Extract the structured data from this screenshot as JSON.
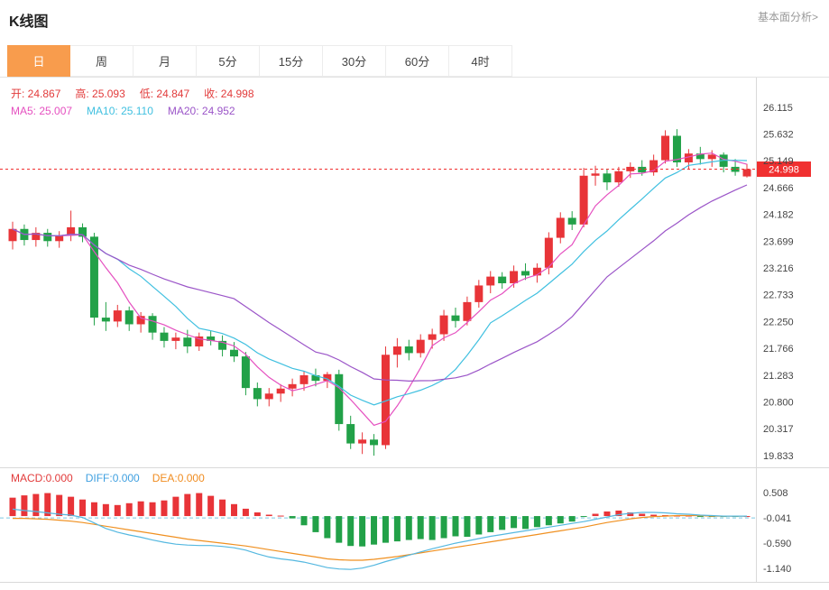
{
  "header": {
    "title": "K线图",
    "link": "基本面分析>"
  },
  "tabs": {
    "active_index": 0,
    "items": [
      {
        "label": "日"
      },
      {
        "label": "周"
      },
      {
        "label": "月"
      },
      {
        "label": "5分"
      },
      {
        "label": "15分"
      },
      {
        "label": "30分"
      },
      {
        "label": "60分"
      },
      {
        "label": "4时"
      }
    ]
  },
  "info": {
    "open": "开: 24.867",
    "high": "高: 25.093",
    "low": "低: 24.847",
    "close": "收: 24.998"
  },
  "ma": {
    "ma5": "MA5: 25.007",
    "ma10": "MA10: 25.110",
    "ma20": "MA20: 24.952"
  },
  "macd_labels": {
    "macd": "MACD:0.000",
    "diff": "DIFF:0.000",
    "dea": "DEA:0.000"
  },
  "price_badge": "24.998",
  "colors": {
    "up": "#e83438",
    "down": "#22a148",
    "ma5": "#e550c0",
    "ma10": "#40c0e0",
    "ma20": "#9b55c8",
    "diff": "#55b8e0",
    "dea": "#f09020",
    "axis_text": "#444444",
    "grid": "#d9d9d9",
    "dashed": "#7ec8e3",
    "price_line": "#f03030",
    "badge_bg": "#f03030"
  },
  "chart_data": {
    "type": "candlestick+macd",
    "title": "K线图",
    "period_selected": "日",
    "y_ticks": [
      "26.115",
      "25.632",
      "25.149",
      "24.666",
      "24.182",
      "23.699",
      "23.216",
      "22.733",
      "22.250",
      "21.766",
      "21.283",
      "20.800",
      "20.317",
      "19.833"
    ],
    "y_range": [
      19.62,
      26.65
    ],
    "macd_ticks": [
      "0.508",
      "-0.041",
      "-0.590",
      "-1.140"
    ],
    "macd_range": [
      -1.45,
      1.06
    ],
    "zero_line": -0.041,
    "last_close": 24.998,
    "ma_periods": [
      5,
      10,
      20
    ],
    "ohlc_last": {
      "open": 24.867,
      "high": 25.093,
      "low": 24.847,
      "close": 24.998
    },
    "ma_values": {
      "ma5": 25.007,
      "ma10": 25.11,
      "ma20": 24.952
    },
    "macd_values": {
      "macd": 0.0,
      "diff": 0.0,
      "dea": 0.0
    },
    "candles": [
      [
        23.7,
        24.05,
        23.55,
        23.92
      ],
      [
        23.92,
        24.0,
        23.62,
        23.72
      ],
      [
        23.72,
        23.95,
        23.6,
        23.85
      ],
      [
        23.85,
        23.92,
        23.6,
        23.7
      ],
      [
        23.7,
        23.88,
        23.58,
        23.8
      ],
      [
        23.8,
        24.25,
        23.7,
        23.95
      ],
      [
        23.95,
        24.02,
        23.68,
        23.78
      ],
      [
        23.78,
        23.85,
        22.18,
        22.32
      ],
      [
        22.32,
        22.6,
        22.08,
        22.25
      ],
      [
        22.25,
        22.55,
        22.15,
        22.45
      ],
      [
        22.45,
        22.52,
        22.08,
        22.2
      ],
      [
        22.2,
        22.42,
        22.05,
        22.35
      ],
      [
        22.35,
        22.4,
        21.92,
        22.05
      ],
      [
        22.05,
        22.15,
        21.78,
        21.9
      ],
      [
        21.9,
        22.05,
        21.75,
        21.96
      ],
      [
        21.96,
        22.1,
        21.68,
        21.8
      ],
      [
        21.8,
        22.05,
        21.72,
        21.98
      ],
      [
        21.98,
        22.08,
        21.82,
        21.9
      ],
      [
        21.9,
        22.0,
        21.62,
        21.74
      ],
      [
        21.74,
        21.88,
        21.52,
        21.62
      ],
      [
        21.62,
        21.7,
        20.92,
        21.05
      ],
      [
        21.05,
        21.15,
        20.72,
        20.85
      ],
      [
        20.85,
        21.05,
        20.72,
        20.95
      ],
      [
        20.95,
        21.12,
        20.8,
        21.04
      ],
      [
        21.04,
        21.22,
        20.9,
        21.12
      ],
      [
        21.12,
        21.35,
        21.0,
        21.28
      ],
      [
        21.28,
        21.4,
        21.08,
        21.18
      ],
      [
        21.18,
        21.34,
        21.05,
        21.3
      ],
      [
        21.3,
        21.38,
        20.28,
        20.4
      ],
      [
        20.4,
        20.55,
        19.95,
        20.05
      ],
      [
        20.05,
        20.25,
        19.86,
        20.12
      ],
      [
        20.12,
        20.22,
        19.83,
        20.02
      ],
      [
        20.02,
        21.8,
        19.95,
        21.65
      ],
      [
        21.65,
        21.95,
        21.42,
        21.8
      ],
      [
        21.8,
        21.92,
        21.55,
        21.68
      ],
      [
        21.68,
        22.02,
        21.6,
        21.92
      ],
      [
        21.92,
        22.12,
        21.76,
        22.02
      ],
      [
        22.02,
        22.46,
        21.9,
        22.36
      ],
      [
        22.36,
        22.5,
        22.14,
        22.26
      ],
      [
        22.26,
        22.7,
        22.18,
        22.6
      ],
      [
        22.6,
        23.0,
        22.5,
        22.9
      ],
      [
        22.9,
        23.16,
        22.76,
        23.06
      ],
      [
        23.06,
        23.14,
        22.84,
        22.94
      ],
      [
        22.94,
        23.26,
        22.86,
        23.16
      ],
      [
        23.16,
        23.3,
        23.0,
        23.08
      ],
      [
        23.08,
        23.3,
        22.95,
        23.22
      ],
      [
        23.22,
        23.86,
        23.1,
        23.76
      ],
      [
        23.76,
        24.22,
        23.66,
        24.12
      ],
      [
        24.12,
        24.24,
        23.9,
        24.0
      ],
      [
        24.0,
        25.02,
        23.95,
        24.88
      ],
      [
        24.88,
        25.06,
        24.7,
        24.92
      ],
      [
        24.92,
        25.0,
        24.62,
        24.76
      ],
      [
        24.76,
        25.04,
        24.68,
        24.96
      ],
      [
        24.96,
        25.12,
        24.84,
        25.04
      ],
      [
        25.04,
        25.16,
        24.88,
        24.94
      ],
      [
        24.94,
        25.26,
        24.88,
        25.16
      ],
      [
        25.16,
        25.7,
        25.1,
        25.6
      ],
      [
        25.6,
        25.72,
        25.04,
        25.12
      ],
      [
        25.12,
        25.36,
        25.0,
        25.28
      ],
      [
        25.28,
        25.4,
        25.08,
        25.18
      ],
      [
        25.18,
        25.34,
        25.04,
        25.26
      ],
      [
        25.26,
        25.3,
        24.94,
        25.04
      ],
      [
        25.04,
        25.18,
        24.88,
        24.95
      ],
      [
        24.867,
        25.093,
        24.847,
        24.998
      ]
    ],
    "macd_hist": [
      0.4,
      0.45,
      0.48,
      0.5,
      0.46,
      0.42,
      0.36,
      0.3,
      0.26,
      0.24,
      0.28,
      0.32,
      0.3,
      0.34,
      0.42,
      0.48,
      0.5,
      0.44,
      0.36,
      0.26,
      0.16,
      0.08,
      0.03,
      0.01,
      -0.05,
      -0.2,
      -0.35,
      -0.48,
      -0.58,
      -0.65,
      -0.66,
      -0.62,
      -0.58,
      -0.55,
      -0.52,
      -0.5,
      -0.52,
      -0.48,
      -0.44,
      -0.45,
      -0.4,
      -0.35,
      -0.3,
      -0.26,
      -0.28,
      -0.24,
      -0.2,
      -0.16,
      -0.12,
      -0.02,
      0.05,
      0.1,
      0.12,
      0.08,
      0.05,
      0.03,
      0.02,
      0.01,
      0.01,
      -0.01,
      -0.01,
      -0.02,
      -0.01,
      0.0
    ],
    "diff": [
      0.15,
      0.12,
      0.1,
      0.07,
      0.04,
      0.02,
      -0.03,
      -0.15,
      -0.27,
      -0.35,
      -0.41,
      -0.46,
      -0.52,
      -0.57,
      -0.61,
      -0.63,
      -0.64,
      -0.64,
      -0.66,
      -0.69,
      -0.74,
      -0.82,
      -0.89,
      -0.93,
      -0.96,
      -1.0,
      -1.06,
      -1.12,
      -1.15,
      -1.16,
      -1.13,
      -1.07,
      -0.99,
      -0.92,
      -0.85,
      -0.78,
      -0.71,
      -0.65,
      -0.59,
      -0.54,
      -0.49,
      -0.44,
      -0.4,
      -0.36,
      -0.32,
      -0.28,
      -0.24,
      -0.2,
      -0.16,
      -0.12,
      -0.07,
      -0.02,
      0.03,
      0.06,
      0.08,
      0.08,
      0.07,
      0.05,
      0.04,
      0.02,
      0.01,
      0.0,
      0.0,
      0.0
    ],
    "dea": [
      -0.05,
      -0.05,
      -0.06,
      -0.07,
      -0.09,
      -0.11,
      -0.14,
      -0.18,
      -0.22,
      -0.26,
      -0.3,
      -0.34,
      -0.38,
      -0.42,
      -0.46,
      -0.5,
      -0.53,
      -0.56,
      -0.59,
      -0.62,
      -0.65,
      -0.69,
      -0.73,
      -0.77,
      -0.81,
      -0.85,
      -0.89,
      -0.93,
      -0.95,
      -0.96,
      -0.96,
      -0.94,
      -0.91,
      -0.88,
      -0.84,
      -0.8,
      -0.76,
      -0.72,
      -0.68,
      -0.64,
      -0.6,
      -0.56,
      -0.52,
      -0.48,
      -0.44,
      -0.4,
      -0.36,
      -0.32,
      -0.28,
      -0.24,
      -0.19,
      -0.14,
      -0.1,
      -0.06,
      -0.03,
      -0.01,
      0.0,
      0.01,
      0.01,
      0.01,
      0.0,
      0.0,
      0.0,
      0.0
    ]
  }
}
